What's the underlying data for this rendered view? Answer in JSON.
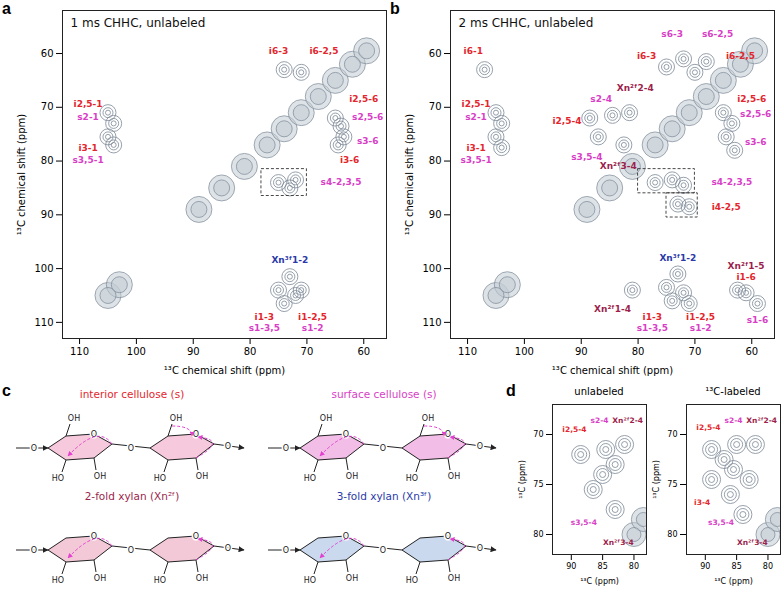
{
  "chart_data": [
    {
      "panel": "a",
      "type": "nmr_2d",
      "title": "1 ms CHHC, unlabeled",
      "x_label": "¹³C chemical shift (ppm)",
      "y_label": "¹³C chemical shift (ppm)",
      "xlim": [
        56,
        113
      ],
      "ylim": [
        52,
        113
      ],
      "xticks": [
        60,
        70,
        80,
        90,
        100,
        110
      ],
      "yticks": [
        60,
        70,
        80,
        90,
        100,
        110
      ],
      "peaks": [
        [
          105,
          71
        ],
        [
          104,
          73
        ],
        [
          105,
          75.5
        ],
        [
          104,
          77
        ],
        [
          74,
          63
        ],
        [
          71,
          63.5
        ],
        [
          65,
          72
        ],
        [
          64,
          73.5
        ],
        [
          63.5,
          75.5
        ],
        [
          64.5,
          77
        ],
        [
          75,
          84
        ],
        [
          72,
          83.5
        ],
        [
          73,
          85
        ],
        [
          75,
          104
        ],
        [
          72,
          105
        ],
        [
          74,
          106.5
        ],
        [
          71,
          104
        ],
        [
          73,
          101.5
        ]
      ],
      "diagonal_peaks": [
        [
          105,
          105
        ],
        [
          103,
          103
        ],
        [
          89,
          89
        ],
        [
          85,
          85
        ],
        [
          81,
          81
        ],
        [
          77,
          77
        ],
        [
          74,
          74
        ],
        [
          71,
          71
        ],
        [
          68,
          68
        ],
        [
          65,
          65
        ],
        [
          62,
          62
        ],
        [
          59.5,
          59.5
        ]
      ],
      "boxes": [
        [
          78,
          70,
          81.5,
          86.5
        ]
      ],
      "annotations": [
        {
          "text": "i2,5-1",
          "x": 108.5,
          "y": 69.5,
          "color": "#e3262d"
        },
        {
          "text": "s2-1",
          "x": 108.5,
          "y": 71.8,
          "color": "#d83fc6"
        },
        {
          "text": "i3-1",
          "x": 108.5,
          "y": 77.5,
          "color": "#e3262d"
        },
        {
          "text": "s3,5-1",
          "x": 108.5,
          "y": 79.8,
          "color": "#d83fc6"
        },
        {
          "text": "i6-3",
          "x": 75,
          "y": 59.5,
          "color": "#e3262d"
        },
        {
          "text": "i6-2,5",
          "x": 67,
          "y": 59.5,
          "color": "#e3262d"
        },
        {
          "text": "i2,5-6",
          "x": 60,
          "y": 68.5,
          "color": "#e3262d"
        },
        {
          "text": "s2,5-6",
          "x": 59.3,
          "y": 71.8,
          "color": "#d83fc6"
        },
        {
          "text": "s3-6",
          "x": 59.3,
          "y": 76.2,
          "color": "#d83fc6"
        },
        {
          "text": "i3-6",
          "x": 62.5,
          "y": 79.8,
          "color": "#e3262d"
        },
        {
          "text": "s4-2,3,5",
          "x": 64,
          "y": 84,
          "color": "#d83fc6"
        },
        {
          "text": "Xn³ᶠ1-2",
          "x": 73,
          "y": 98.5,
          "color": "#2b3aa8"
        },
        {
          "text": "i1-3",
          "x": 77.5,
          "y": 109,
          "color": "#e3262d"
        },
        {
          "text": "s1-3,5",
          "x": 77.5,
          "y": 111,
          "color": "#d83fc6"
        },
        {
          "text": "i1-2,5",
          "x": 69,
          "y": 109,
          "color": "#e3262d"
        },
        {
          "text": "s1-2",
          "x": 69,
          "y": 111,
          "color": "#d83fc6"
        }
      ]
    },
    {
      "panel": "b",
      "type": "nmr_2d",
      "title": "2 ms CHHC, unlabeled",
      "x_label": "¹³C chemical shift (ppm)",
      "y_label": "¹³C chemical shift (ppm)",
      "xlim": [
        56,
        113
      ],
      "ylim": [
        52,
        113
      ],
      "xticks": [
        60,
        70,
        80,
        90,
        100,
        110
      ],
      "yticks": [
        60,
        70,
        80,
        90,
        100,
        110
      ],
      "peaks": [
        [
          107,
          63
        ],
        [
          105,
          71
        ],
        [
          104,
          73
        ],
        [
          105,
          75.5
        ],
        [
          104,
          77.5
        ],
        [
          88.5,
          72
        ],
        [
          84.5,
          71.5
        ],
        [
          81.5,
          71
        ],
        [
          87,
          75.5
        ],
        [
          82.5,
          77
        ],
        [
          75,
          62.5
        ],
        [
          72,
          61
        ],
        [
          70,
          63.5
        ],
        [
          68,
          61.5
        ],
        [
          65,
          71
        ],
        [
          63.5,
          73
        ],
        [
          64.5,
          75.5
        ],
        [
          63,
          78
        ],
        [
          77,
          84
        ],
        [
          74,
          83.5
        ],
        [
          72,
          84.5
        ],
        [
          73,
          88
        ],
        [
          71,
          88.5
        ],
        [
          81,
          104
        ],
        [
          75,
          103.5
        ],
        [
          72,
          104.5
        ],
        [
          74,
          106
        ],
        [
          71,
          106.5
        ],
        [
          73,
          101
        ],
        [
          62.5,
          104
        ],
        [
          61,
          104.5
        ],
        [
          59,
          106.5
        ]
      ],
      "diagonal_peaks": [
        [
          105,
          105
        ],
        [
          103,
          103
        ],
        [
          89,
          89
        ],
        [
          85,
          85
        ],
        [
          81,
          81
        ],
        [
          77,
          77
        ],
        [
          74,
          74
        ],
        [
          71,
          71
        ],
        [
          68,
          68
        ],
        [
          65,
          65
        ],
        [
          62,
          62
        ],
        [
          59.5,
          59.5
        ]
      ],
      "boxes": [
        [
          80,
          70,
          81.5,
          86
        ],
        [
          75,
          69.5,
          86,
          90.5
        ]
      ],
      "annotations": [
        {
          "text": "i6-1",
          "x": 109,
          "y": 59.5,
          "color": "#e3262d"
        },
        {
          "text": "i2,5-1",
          "x": 108.5,
          "y": 69.5,
          "color": "#e3262d"
        },
        {
          "text": "s2-1",
          "x": 108.5,
          "y": 71.8,
          "color": "#d83fc6"
        },
        {
          "text": "i3-1",
          "x": 108.5,
          "y": 77.5,
          "color": "#e3262d"
        },
        {
          "text": "s3,5-1",
          "x": 108.5,
          "y": 79.8,
          "color": "#d83fc6"
        },
        {
          "text": "i2,5-4",
          "x": 92.5,
          "y": 72.5,
          "color": "#e3262d"
        },
        {
          "text": "s2-4",
          "x": 86.5,
          "y": 68.5,
          "color": "#d83fc6"
        },
        {
          "text": "Xn²ᶠ2-4",
          "x": 80.5,
          "y": 66.5,
          "color": "#9c1f4d"
        },
        {
          "text": "s3,5-4",
          "x": 89,
          "y": 79.3,
          "color": "#d83fc6"
        },
        {
          "text": "Xn²ᶠ3-4",
          "x": 83.5,
          "y": 81,
          "color": "#9c1f4d"
        },
        {
          "text": "s6-3",
          "x": 74,
          "y": 56.3,
          "color": "#d83fc6"
        },
        {
          "text": "s6-2,5",
          "x": 66,
          "y": 56.3,
          "color": "#d83fc6"
        },
        {
          "text": "i6-3",
          "x": 78.5,
          "y": 60.5,
          "color": "#e3262d"
        },
        {
          "text": "i6-2,5",
          "x": 62,
          "y": 60.5,
          "color": "#e3262d"
        },
        {
          "text": "i2,5-6",
          "x": 60,
          "y": 68.5,
          "color": "#e3262d"
        },
        {
          "text": "s2,5-6",
          "x": 59.3,
          "y": 71.2,
          "color": "#d83fc6"
        },
        {
          "text": "s3-6",
          "x": 59.3,
          "y": 76.5,
          "color": "#d83fc6"
        },
        {
          "text": "s4-2,3,5",
          "x": 63.5,
          "y": 84,
          "color": "#d83fc6"
        },
        {
          "text": "i4-2,5",
          "x": 64.5,
          "y": 88.5,
          "color": "#e3262d"
        },
        {
          "text": "Xn³ᶠ1-2",
          "x": 73,
          "y": 98,
          "color": "#2b3aa8"
        },
        {
          "text": "Xn²ᶠ1-4",
          "x": 84.5,
          "y": 107.5,
          "color": "#9c1f4d"
        },
        {
          "text": "i1-3",
          "x": 77.5,
          "y": 109,
          "color": "#e3262d"
        },
        {
          "text": "s1-3,5",
          "x": 77.5,
          "y": 111,
          "color": "#d83fc6"
        },
        {
          "text": "i1-2,5",
          "x": 69,
          "y": 109,
          "color": "#e3262d"
        },
        {
          "text": "s1-2",
          "x": 69,
          "y": 111,
          "color": "#d83fc6"
        },
        {
          "text": "Xn²ᶠ1-5",
          "x": 61,
          "y": 99.6,
          "color": "#9c1f4d"
        },
        {
          "text": "i1-6",
          "x": 61,
          "y": 101.5,
          "color": "#e3262d"
        },
        {
          "text": "s1-6",
          "x": 59,
          "y": 109.5,
          "color": "#d83fc6"
        }
      ]
    },
    {
      "panel": "d",
      "type": "nmr_2d_zoom",
      "title": "unlabeled",
      "x_label": "¹³C (ppm)",
      "y_label": "¹³C (ppm)",
      "xlim": [
        78,
        93
      ],
      "ylim": [
        67,
        82
      ],
      "xticks": [
        80,
        85,
        90
      ],
      "yticks": [
        70,
        75,
        80
      ],
      "peaks": [
        [
          88.5,
          72
        ],
        [
          84.5,
          71.5
        ],
        [
          81.5,
          71
        ],
        [
          86.5,
          75.5
        ],
        [
          83,
          77.5
        ],
        [
          85,
          74
        ],
        [
          83,
          73
        ]
      ],
      "diagonal_peaks": [
        [
          80,
          80
        ],
        [
          78.5,
          78.5
        ]
      ],
      "annotations": [
        {
          "text": "i2,5-4",
          "x": 89.5,
          "y": 69.5,
          "color": "#e3262d"
        },
        {
          "text": "s2-4",
          "x": 85.5,
          "y": 68.6,
          "color": "#d83fc6"
        },
        {
          "text": "Xn²ᶠ2-4",
          "x": 81,
          "y": 68.6,
          "color": "#9c1f4d"
        },
        {
          "text": "s3,5-4",
          "x": 88,
          "y": 78.8,
          "color": "#d83fc6"
        },
        {
          "text": "Xn²ᶠ3-4",
          "x": 82.5,
          "y": 80.8,
          "color": "#9c1f4d"
        }
      ]
    },
    {
      "panel": "d",
      "type": "nmr_2d_zoom",
      "title": "¹³C-labeled",
      "x_label": "¹³C (ppm)",
      "y_label": "¹³C (ppm)",
      "xlim": [
        78,
        93
      ],
      "ylim": [
        67,
        82
      ],
      "xticks": [
        80,
        85,
        90
      ],
      "yticks": [
        70,
        75,
        80
      ],
      "peaks": [
        [
          89,
          71.5
        ],
        [
          85,
          71
        ],
        [
          82,
          71
        ],
        [
          89,
          74.5
        ],
        [
          86,
          76
        ],
        [
          84,
          78
        ],
        [
          85.5,
          73.5
        ],
        [
          83,
          74.5
        ],
        [
          87,
          72.5
        ]
      ],
      "diagonal_peaks": [
        [
          80,
          80
        ],
        [
          78.5,
          78.5
        ]
      ],
      "annotations": [
        {
          "text": "i2,5-4",
          "x": 89.5,
          "y": 69.3,
          "color": "#e3262d"
        },
        {
          "text": "s2-4",
          "x": 85.5,
          "y": 68.6,
          "color": "#d83fc6"
        },
        {
          "text": "Xn²ᶠ2-4",
          "x": 81,
          "y": 68.6,
          "color": "#9c1f4d"
        },
        {
          "text": "i3-4",
          "x": 90.5,
          "y": 76.8,
          "color": "#e3262d"
        },
        {
          "text": "s3,5-4",
          "x": 87.5,
          "y": 78.8,
          "color": "#d83fc6"
        },
        {
          "text": "Xn²ᶠ3-4",
          "x": 82.5,
          "y": 80.8,
          "color": "#9c1f4d"
        }
      ]
    }
  ],
  "diagram": {
    "panel": "c",
    "atoms": {
      "oxygen": "O",
      "hydroxyl": "OH",
      "hydroxyl_left": "HO"
    },
    "structures": [
      {
        "title": "interior cellulose (s)",
        "color": "#e3262d",
        "ring_color": "#f6c9dc",
        "hydroxymethyl": true
      },
      {
        "title": "surface cellulose (s)",
        "color": "#d83fc6",
        "ring_color": "#f2bde6",
        "hydroxymethyl": true
      },
      {
        "title": "2-fold xylan (Xn²ᶠ)",
        "color": "#9c1f4d",
        "ring_color": "#f3c9d8",
        "hydroxymethyl": false
      },
      {
        "title": "3-fold xylan (Xn³ᶠ)",
        "color": "#2b3aa8",
        "ring_color": "#cbd9ee",
        "hydroxymethyl": false
      }
    ]
  }
}
